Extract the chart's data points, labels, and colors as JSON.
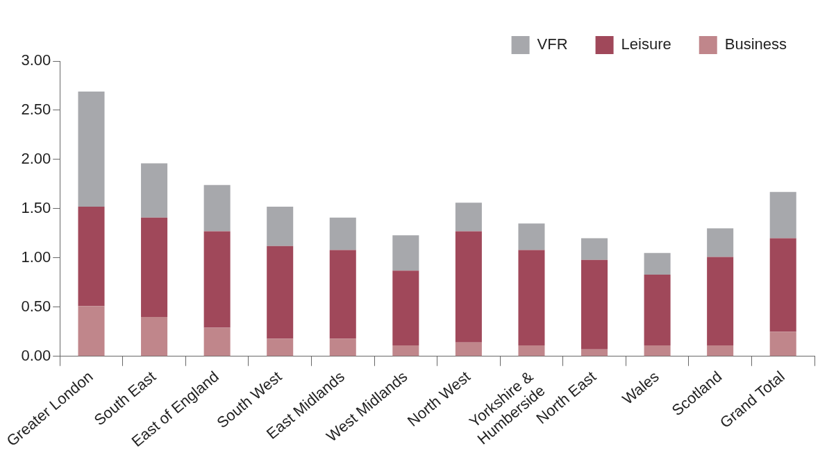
{
  "chart_data": {
    "type": "bar",
    "stacked": true,
    "categories": [
      "Greater London",
      "South East",
      "East of England",
      "South West",
      "East Midlands",
      "West Midlands",
      "North West",
      "Yorkshire & Humberside",
      "North East",
      "Wales",
      "Scotland",
      "Grand Total"
    ],
    "series": [
      {
        "name": "Business",
        "color": "#c0868b",
        "values": [
          0.51,
          0.4,
          0.29,
          0.18,
          0.18,
          0.11,
          0.14,
          0.11,
          0.07,
          0.11,
          0.11,
          0.25
        ]
      },
      {
        "name": "Leisure",
        "color": "#a0485a",
        "values": [
          1.01,
          1.01,
          0.98,
          0.94,
          0.9,
          0.76,
          1.13,
          0.97,
          0.91,
          0.72,
          0.9,
          0.95
        ]
      },
      {
        "name": "VFR",
        "color": "#a7a8ac",
        "values": [
          1.17,
          0.55,
          0.47,
          0.4,
          0.33,
          0.36,
          0.29,
          0.27,
          0.22,
          0.22,
          0.29,
          0.47
        ]
      }
    ],
    "ylim": [
      0,
      3
    ],
    "yticks": [
      {
        "value": 0,
        "label": "0.00"
      },
      {
        "value": 0.5,
        "label": "0.50"
      },
      {
        "value": 1,
        "label": "1.00"
      },
      {
        "value": 1.5,
        "label": "1.50"
      },
      {
        "value": 2,
        "label": "2.00"
      },
      {
        "value": 2.5,
        "label": "2.50"
      },
      {
        "value": 3,
        "label": "3.00"
      }
    ],
    "grid": false,
    "legend": "top right"
  }
}
